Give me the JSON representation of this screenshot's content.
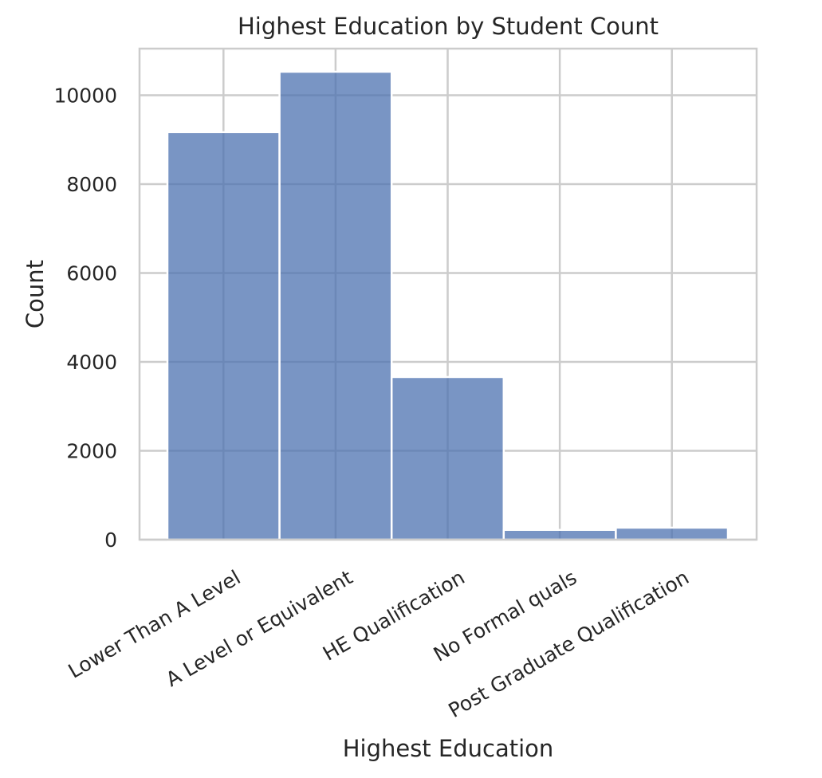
{
  "chart_data": {
    "type": "bar",
    "title": "Highest Education by Student Count",
    "xlabel": "Highest Education",
    "ylabel": "Count",
    "categories": [
      "Lower Than A Level",
      "A Level or Equivalent",
      "HE Qualification",
      "No Formal quals",
      "Post Graduate Qualification"
    ],
    "values": [
      9170,
      10530,
      3660,
      220,
      270
    ],
    "ylim": [
      0,
      11050
    ],
    "yticks": [
      0,
      2000,
      4000,
      6000,
      8000,
      10000
    ],
    "ytick_labels": [
      "0",
      "2000",
      "4000",
      "6000",
      "8000",
      "10000"
    ],
    "grid": true,
    "bar_color": "#4c72b0",
    "bar_opacity": 0.75,
    "grid_color": "#cccccc",
    "background": "#ffffff"
  }
}
